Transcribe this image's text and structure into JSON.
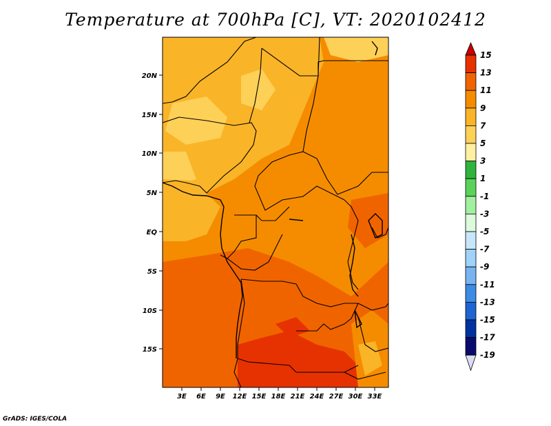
{
  "title": "Temperature at 700hPa [C], VT: 2020102412",
  "footer": "GrADS: IGES/COLA",
  "map": {
    "lat_ticks": [
      "20N",
      "15N",
      "10N",
      "5N",
      "EQ",
      "5S",
      "10S",
      "15S"
    ],
    "lon_ticks": [
      "3E",
      "6E",
      "9E",
      "12E",
      "15E",
      "18E",
      "21E",
      "24E",
      "27E",
      "30E",
      "33E"
    ]
  },
  "colorbar": {
    "labels": [
      "15",
      "13",
      "11",
      "9",
      "7",
      "5",
      "3",
      "1",
      "-1",
      "-3",
      "-5",
      "-7",
      "-9",
      "-11",
      "-13",
      "-15",
      "-17",
      "-19"
    ],
    "colors": [
      "#c80000",
      "#e63200",
      "#f06400",
      "#f58c00",
      "#fab428",
      "#fdd058",
      "#fef0a0",
      "#2eb43c",
      "#5ad25a",
      "#a0f0a0",
      "#dcfadc",
      "#c8e6fa",
      "#a0d2fa",
      "#78b4f0",
      "#3c8ce6",
      "#1e64d2",
      "#0032a0",
      "#0a0a6e",
      "#dcdcf5"
    ]
  }
}
